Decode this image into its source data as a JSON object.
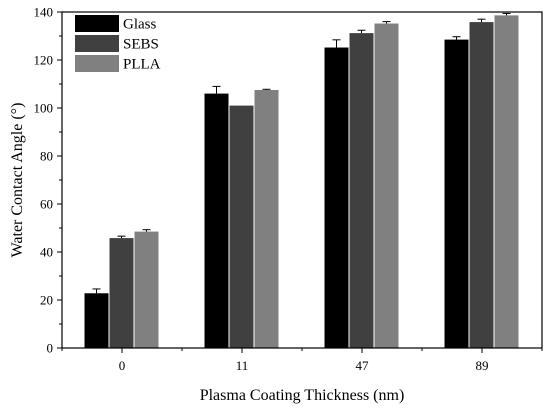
{
  "chart_data": {
    "type": "bar",
    "title": "",
    "xlabel": "Plasma Coating Thickness (nm)",
    "ylabel": "Water Contact Angle (°)",
    "categories": [
      "0",
      "11",
      "47",
      "89"
    ],
    "ylim": [
      0,
      140
    ],
    "yticks": [
      0,
      20,
      40,
      60,
      80,
      100,
      120,
      140
    ],
    "legend_position": "top-left",
    "grid": false,
    "series": [
      {
        "name": "Glass",
        "color": "#000000",
        "values": [
          22.8,
          106.0,
          125.2,
          128.5
        ],
        "errors": [
          1.8,
          3.0,
          3.2,
          1.2
        ]
      },
      {
        "name": "SEBS",
        "color": "#404040",
        "values": [
          45.8,
          101.0,
          131.2,
          135.8
        ],
        "errors": [
          0.8,
          0.0,
          1.2,
          1.2
        ]
      },
      {
        "name": "PLLA",
        "color": "#808080",
        "values": [
          48.5,
          107.5,
          135.2,
          138.6
        ],
        "errors": [
          0.8,
          0.3,
          0.8,
          0.8
        ]
      }
    ]
  }
}
